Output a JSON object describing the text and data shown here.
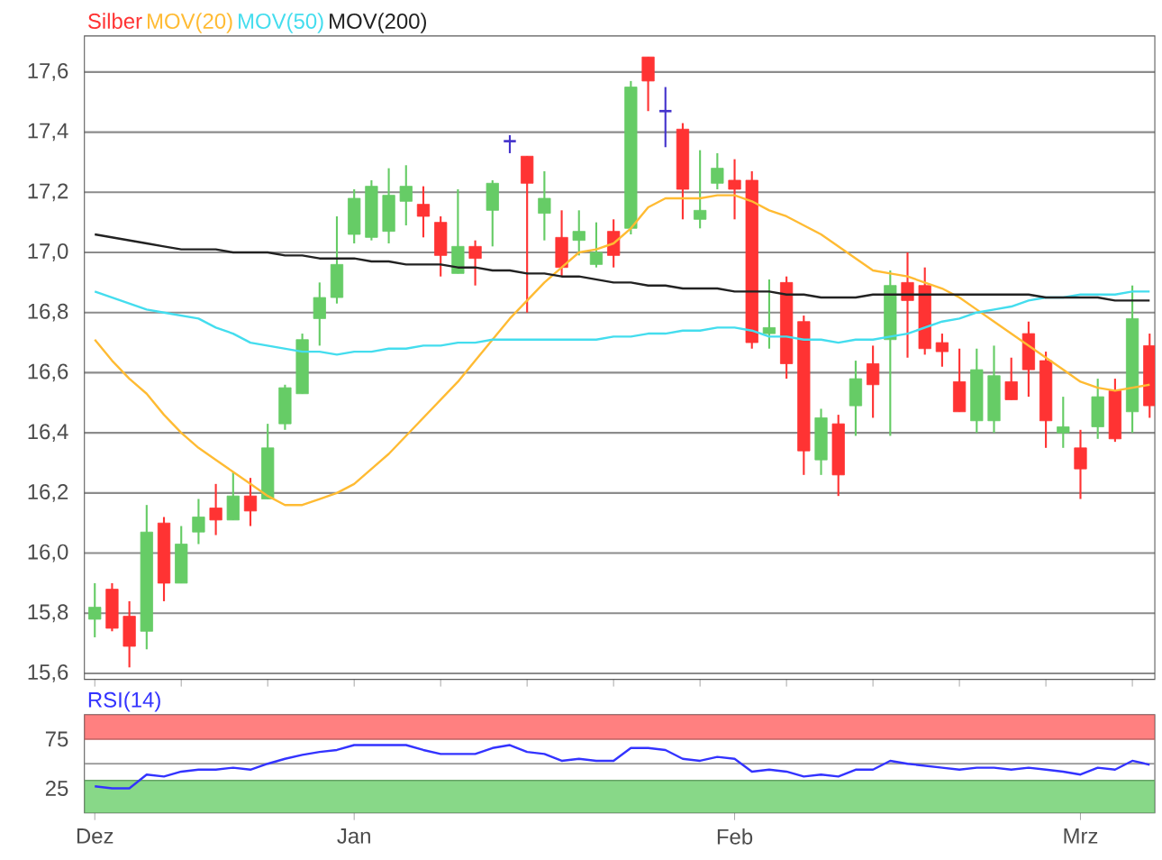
{
  "chart_data": [
    {
      "type": "candlestick",
      "categories": [
        null,
        null,
        null,
        null,
        null,
        null,
        null,
        null,
        null,
        null,
        null,
        null,
        null,
        null,
        null,
        null,
        null,
        null,
        null,
        null,
        null,
        null,
        null,
        null,
        null,
        null,
        null,
        null,
        null,
        null,
        null,
        null,
        null,
        null,
        null,
        null,
        null,
        null,
        null,
        null,
        null,
        null,
        null,
        null,
        null,
        null,
        null,
        null,
        null,
        null,
        null,
        null,
        null,
        null,
        null,
        null,
        null,
        null,
        null,
        null,
        null,
        null
      ],
      "ylim": [
        15.58,
        17.72
      ],
      "yticks": [
        {
          "value": 15.6,
          "label": "15,6"
        },
        {
          "value": 15.8,
          "label": "15,8"
        },
        {
          "value": 16.0,
          "label": "16,0"
        },
        {
          "value": 16.2,
          "label": "16,2"
        },
        {
          "value": 16.4,
          "label": "16,4"
        },
        {
          "value": 16.6,
          "label": "16,6"
        },
        {
          "value": 16.8,
          "label": "16,8"
        },
        {
          "value": 17.0,
          "label": "17,0"
        },
        {
          "value": 17.2,
          "label": "17,2"
        },
        {
          "value": 17.4,
          "label": "17,4"
        },
        {
          "value": 17.6,
          "label": "17,6"
        }
      ],
      "grid": "y",
      "legend": "top left",
      "tick_labels": "y",
      "series": [
        {
          "name": "Silber",
          "color": "#ff3333",
          "ohlc": [
            [
              15.78,
              15.9,
              15.72,
              15.82
            ],
            [
              15.88,
              15.9,
              15.74,
              15.75
            ],
            [
              15.79,
              15.84,
              15.62,
              15.69
            ],
            [
              15.74,
              16.16,
              15.68,
              16.07
            ],
            [
              16.1,
              16.12,
              15.84,
              15.9
            ],
            [
              15.9,
              16.09,
              15.9,
              16.03
            ],
            [
              16.07,
              16.18,
              16.03,
              16.12
            ],
            [
              16.15,
              16.23,
              16.06,
              16.11
            ],
            [
              16.11,
              16.27,
              16.11,
              16.19
            ],
            [
              16.19,
              16.25,
              16.09,
              16.14
            ],
            [
              16.18,
              16.43,
              16.18,
              16.35
            ],
            [
              16.43,
              16.56,
              16.41,
              16.55
            ],
            [
              16.53,
              16.73,
              16.53,
              16.71
            ],
            [
              16.78,
              16.9,
              16.69,
              16.85
            ],
            [
              16.85,
              17.12,
              16.83,
              16.96
            ],
            [
              17.06,
              17.21,
              17.03,
              17.18
            ],
            [
              17.05,
              17.24,
              17.04,
              17.22
            ],
            [
              17.07,
              17.28,
              17.03,
              17.19
            ],
            [
              17.17,
              17.29,
              17.09,
              17.22
            ],
            [
              17.16,
              17.22,
              17.05,
              17.12
            ],
            [
              17.1,
              17.12,
              16.92,
              16.99
            ],
            [
              16.93,
              17.21,
              16.93,
              17.02
            ],
            [
              17.02,
              17.04,
              16.89,
              16.98
            ],
            [
              17.14,
              17.24,
              17.02,
              17.23
            ],
            [
              17.37,
              17.39,
              17.33,
              17.37
            ],
            [
              17.32,
              17.32,
              16.8,
              17.23
            ],
            [
              17.13,
              17.27,
              17.04,
              17.18
            ],
            [
              17.05,
              17.14,
              16.92,
              16.95
            ],
            [
              17.04,
              17.14,
              16.99,
              17.07
            ],
            [
              16.96,
              17.1,
              16.95,
              17.0
            ],
            [
              17.07,
              17.11,
              16.95,
              16.99
            ],
            [
              17.08,
              17.57,
              17.06,
              17.55
            ],
            [
              17.65,
              17.65,
              17.47,
              17.57
            ],
            [
              17.47,
              17.55,
              17.35,
              17.47
            ],
            [
              17.41,
              17.43,
              17.11,
              17.21
            ],
            [
              17.11,
              17.34,
              17.08,
              17.14
            ],
            [
              17.23,
              17.33,
              17.21,
              17.28
            ],
            [
              17.24,
              17.31,
              17.11,
              17.21
            ],
            [
              17.24,
              17.27,
              16.68,
              16.7
            ],
            [
              16.73,
              16.91,
              16.68,
              16.75
            ],
            [
              16.9,
              16.92,
              16.58,
              16.63
            ],
            [
              16.77,
              16.79,
              16.26,
              16.34
            ],
            [
              16.31,
              16.48,
              16.26,
              16.45
            ],
            [
              16.43,
              16.46,
              16.19,
              16.26
            ],
            [
              16.49,
              16.64,
              16.39,
              16.58
            ],
            [
              16.63,
              16.69,
              16.45,
              16.56
            ],
            [
              16.71,
              16.94,
              16.39,
              16.89
            ],
            [
              16.9,
              17.0,
              16.65,
              16.84
            ],
            [
              16.89,
              16.95,
              16.66,
              16.68
            ],
            [
              16.7,
              16.73,
              16.62,
              16.67
            ],
            [
              16.57,
              16.68,
              16.47,
              16.47
            ],
            [
              16.44,
              16.68,
              16.4,
              16.61
            ],
            [
              16.44,
              16.69,
              16.4,
              16.59
            ],
            [
              16.57,
              16.65,
              16.51,
              16.51
            ],
            [
              16.73,
              16.77,
              16.52,
              16.61
            ],
            [
              16.64,
              16.67,
              16.35,
              16.44
            ],
            [
              16.4,
              16.52,
              16.35,
              16.42
            ],
            [
              16.35,
              16.41,
              16.18,
              16.28
            ],
            [
              16.42,
              16.58,
              16.38,
              16.52
            ],
            [
              16.54,
              16.58,
              16.37,
              16.38
            ],
            [
              16.47,
              16.89,
              16.4,
              16.78
            ],
            [
              16.69,
              16.73,
              16.45,
              16.49
            ]
          ],
          "colors": [
            "#66cc66",
            "#ff3333",
            "#ff3333",
            "#66cc66",
            "#ff3333",
            "#66cc66",
            "#66cc66",
            "#ff3333",
            "#66cc66",
            "#ff3333",
            "#66cc66",
            "#66cc66",
            "#66cc66",
            "#66cc66",
            "#66cc66",
            "#66cc66",
            "#66cc66",
            "#66cc66",
            "#66cc66",
            "#ff3333",
            "#ff3333",
            "#66cc66",
            "#ff3333",
            "#66cc66",
            "#4433cc",
            "#ff3333",
            "#66cc66",
            "#ff3333",
            "#66cc66",
            "#66cc66",
            "#ff3333",
            "#66cc66",
            "#ff3333",
            "#4433cc",
            "#ff3333",
            "#66cc66",
            "#66cc66",
            "#ff3333",
            "#ff3333",
            "#66cc66",
            "#ff3333",
            "#ff3333",
            "#66cc66",
            "#ff3333",
            "#66cc66",
            "#ff3333",
            "#66cc66",
            "#ff3333",
            "#ff3333",
            "#ff3333",
            "#ff3333",
            "#66cc66",
            "#66cc66",
            "#ff3333",
            "#ff3333",
            "#ff3333",
            "#66cc66",
            "#ff3333",
            "#66cc66",
            "#ff3333",
            "#66cc66",
            "#ff3333"
          ]
        },
        {
          "type": "line",
          "name": "MOV(20)",
          "color": "#ffbb33",
          "values": [
            16.71,
            16.64,
            16.58,
            16.53,
            16.46,
            16.4,
            16.35,
            16.31,
            16.27,
            16.23,
            16.19,
            16.16,
            16.16,
            16.18,
            16.2,
            16.23,
            16.28,
            16.33,
            16.39,
            16.45,
            16.51,
            16.57,
            16.64,
            16.71,
            16.78,
            16.84,
            16.9,
            16.95,
            17.0,
            17.01,
            17.03,
            17.08,
            17.15,
            17.18,
            17.18,
            17.18,
            17.19,
            17.19,
            17.17,
            17.14,
            17.12,
            17.09,
            17.06,
            17.02,
            16.98,
            16.94,
            16.93,
            16.92,
            16.9,
            16.88,
            16.85,
            16.81,
            16.77,
            16.73,
            16.69,
            16.65,
            16.61,
            16.57,
            16.55,
            16.54,
            16.55,
            16.56
          ]
        },
        {
          "type": "line",
          "name": "MOV(50)",
          "color": "#44ddee",
          "values": [
            16.87,
            16.85,
            16.83,
            16.81,
            16.8,
            16.79,
            16.78,
            16.75,
            16.73,
            16.7,
            16.69,
            16.68,
            16.67,
            16.67,
            16.66,
            16.67,
            16.67,
            16.68,
            16.68,
            16.69,
            16.69,
            16.7,
            16.7,
            16.71,
            16.71,
            16.71,
            16.71,
            16.71,
            16.71,
            16.71,
            16.72,
            16.72,
            16.73,
            16.73,
            16.74,
            16.74,
            16.75,
            16.75,
            16.74,
            16.72,
            16.72,
            16.71,
            16.71,
            16.7,
            16.71,
            16.71,
            16.72,
            16.73,
            16.75,
            16.77,
            16.78,
            16.8,
            16.81,
            16.82,
            16.84,
            16.85,
            16.85,
            16.86,
            16.86,
            16.86,
            16.87,
            16.87
          ]
        },
        {
          "type": "line",
          "name": "MOV(200)",
          "color": "#222222",
          "values": [
            17.06,
            17.05,
            17.04,
            17.03,
            17.02,
            17.01,
            17.01,
            17.01,
            17.0,
            17.0,
            17.0,
            16.99,
            16.99,
            16.98,
            16.98,
            16.98,
            16.97,
            16.97,
            16.96,
            16.96,
            16.96,
            16.95,
            16.95,
            16.94,
            16.94,
            16.93,
            16.93,
            16.92,
            16.92,
            16.91,
            16.9,
            16.9,
            16.89,
            16.89,
            16.88,
            16.88,
            16.88,
            16.87,
            16.87,
            16.87,
            16.86,
            16.86,
            16.85,
            16.85,
            16.85,
            16.86,
            16.86,
            16.86,
            16.86,
            16.86,
            16.86,
            16.86,
            16.86,
            16.86,
            16.86,
            16.85,
            16.85,
            16.85,
            16.85,
            16.84,
            16.84,
            16.84
          ]
        }
      ]
    },
    {
      "type": "line",
      "categories": [
        "Dez",
        null,
        null,
        null,
        null,
        null,
        null,
        null,
        null,
        null,
        null,
        null,
        null,
        null,
        null,
        "Jan",
        null,
        null,
        null,
        null,
        null,
        null,
        null,
        null,
        null,
        null,
        null,
        null,
        null,
        null,
        null,
        null,
        null,
        null,
        null,
        null,
        null,
        "Feb",
        null,
        null,
        null,
        null,
        null,
        null,
        null,
        null,
        null,
        null,
        null,
        null,
        null,
        null,
        null,
        null,
        null,
        null,
        null,
        "Mrz",
        null,
        null,
        null,
        null
      ],
      "ylim": [
        0,
        100
      ],
      "yticks": [
        25,
        75
      ],
      "legend": "top left",
      "bands": [
        {
          "axis": "y",
          "from": 75,
          "to": 100,
          "color": "#ff8080"
        },
        {
          "axis": "y",
          "from": 0,
          "to": 33,
          "color": "#88d888"
        }
      ],
      "ref_lines": [
        {
          "axis": "y",
          "value": 50,
          "color": "#999999"
        }
      ],
      "series": [
        {
          "name": "RSI(14)",
          "color": "#3333ff",
          "values": [
            27,
            25,
            25,
            39,
            37,
            42,
            44,
            44,
            46,
            44,
            50,
            55,
            59,
            62,
            64,
            69,
            69,
            69,
            69,
            64,
            60,
            60,
            60,
            66,
            69,
            62,
            60,
            53,
            55,
            53,
            53,
            66,
            66,
            64,
            55,
            53,
            57,
            55,
            42,
            44,
            42,
            37,
            39,
            37,
            44,
            44,
            53,
            50,
            48,
            46,
            44,
            46,
            46,
            44,
            46,
            44,
            42,
            39,
            46,
            44,
            53,
            49
          ]
        }
      ]
    }
  ]
}
